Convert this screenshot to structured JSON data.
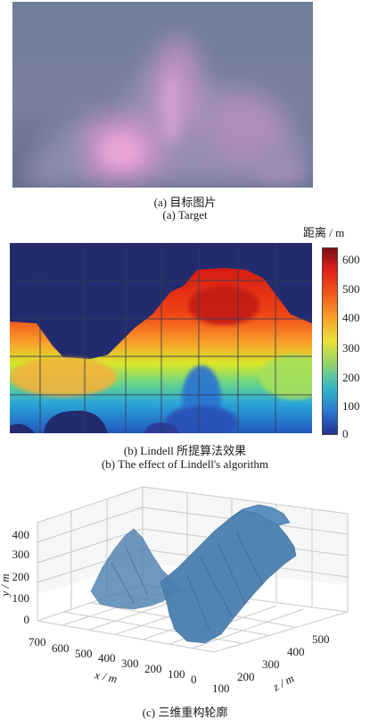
{
  "panel_a": {
    "caption_cn": "(a) 目标图片",
    "caption_en": "(a) Target"
  },
  "panel_b": {
    "colorbar_title": "距离 / m",
    "colorbar_ticks": [
      "0",
      "100",
      "200",
      "300",
      "400",
      "500",
      "600"
    ],
    "caption_cn": "(b) Lindell 所提算法效果",
    "caption_en": "(b) The effect of Lindell's algorithm"
  },
  "panel_c": {
    "caption_cn": "(c) 三维重构轮廓",
    "y_axis_label": "y / m",
    "x_axis_label": "x / m",
    "z_axis_label": "z / m",
    "y_ticks": [
      "0",
      "100",
      "200",
      "300",
      "400"
    ],
    "x_ticks": [
      "700",
      "600",
      "500",
      "400",
      "300",
      "200",
      "100",
      "0"
    ],
    "z_ticks": [
      "100",
      "200",
      "300",
      "400",
      "500"
    ]
  },
  "colors": {
    "sky": "#1f2a6e",
    "surface_blue": "#4a7fb0",
    "target_bg": "#6b7a95",
    "target_glow": "#e59bd0"
  }
}
